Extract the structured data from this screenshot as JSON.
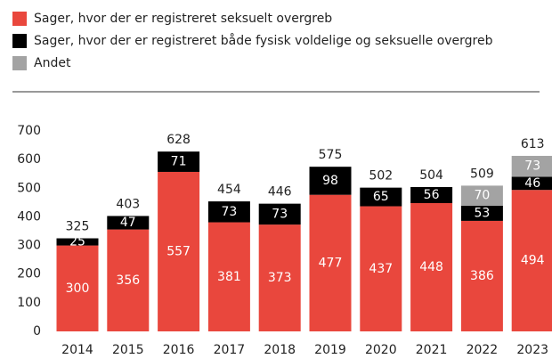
{
  "chart_data": {
    "type": "stacked_bar",
    "categories": [
      "2014",
      "2015",
      "2016",
      "2017",
      "2018",
      "2019",
      "2020",
      "2021",
      "2022",
      "2023"
    ],
    "series": [
      {
        "name": "Sager, hvor der er registreret seksuelt overgreb",
        "color": "#e9473d",
        "values": [
          300,
          356,
          557,
          381,
          373,
          477,
          437,
          448,
          386,
          494
        ]
      },
      {
        "name": "Sager, hvor der er registreret både fysisk voldelige og seksuelle overgreb",
        "color": "#000000",
        "values": [
          25,
          47,
          71,
          73,
          73,
          98,
          65,
          56,
          53,
          46
        ]
      },
      {
        "name": "Andet",
        "color": "#a3a3a3",
        "values": [
          null,
          null,
          null,
          null,
          null,
          null,
          null,
          null,
          70,
          73
        ]
      }
    ],
    "totals": [
      325,
      403,
      628,
      454,
      446,
      575,
      502,
      504,
      509,
      613
    ],
    "ylim": [
      0,
      700
    ],
    "yticks": [
      0,
      100,
      200,
      300,
      400,
      500,
      600,
      700
    ],
    "grid": false
  }
}
